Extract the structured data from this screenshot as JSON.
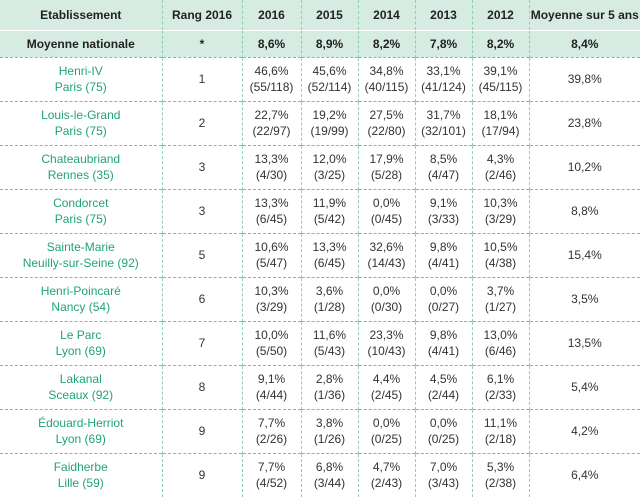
{
  "headers": [
    "Etablissement",
    "Rang 2016",
    "2016",
    "2015",
    "2014",
    "2013",
    "2012",
    "Moyenne sur 5 ans"
  ],
  "national": {
    "label": "Moyenne nationale",
    "rank": "*",
    "values": [
      "8,6%",
      "8,9%",
      "8,2%",
      "7,8%",
      "8,2%"
    ],
    "avg": "8,4%"
  },
  "rows": [
    {
      "name": "Henri-IV",
      "city": "Paris (75)",
      "rank": "1",
      "years": [
        [
          "46,6%",
          "(55/118)"
        ],
        [
          "45,6%",
          "(52/114)"
        ],
        [
          "34,8%",
          "(40/115)"
        ],
        [
          "33,1%",
          "(41/124)"
        ],
        [
          "39,1%",
          "(45/115)"
        ]
      ],
      "avg": "39,8%"
    },
    {
      "name": "Louis-le-Grand",
      "city": "Paris (75)",
      "rank": "2",
      "years": [
        [
          "22,7%",
          "(22/97)"
        ],
        [
          "19,2%",
          "(19/99)"
        ],
        [
          "27,5%",
          "(22/80)"
        ],
        [
          "31,7%",
          "(32/101)"
        ],
        [
          "18,1%",
          "(17/94)"
        ]
      ],
      "avg": "23,8%"
    },
    {
      "name": "Chateaubriand",
      "city": "Rennes (35)",
      "rank": "3",
      "years": [
        [
          "13,3%",
          "(4/30)"
        ],
        [
          "12,0%",
          "(3/25)"
        ],
        [
          "17,9%",
          "(5/28)"
        ],
        [
          "8,5%",
          "(4/47)"
        ],
        [
          "4,3%",
          "(2/46)"
        ]
      ],
      "avg": "10,2%"
    },
    {
      "name": "Condorcet",
      "city": "Paris (75)",
      "rank": "3",
      "years": [
        [
          "13,3%",
          "(6/45)"
        ],
        [
          "11,9%",
          "(5/42)"
        ],
        [
          "0,0%",
          "(0/45)"
        ],
        [
          "9,1%",
          "(3/33)"
        ],
        [
          "10,3%",
          "(3/29)"
        ]
      ],
      "avg": "8,8%"
    },
    {
      "name": "Sainte-Marie",
      "city": "Neuilly-sur-Seine (92)",
      "rank": "5",
      "years": [
        [
          "10,6%",
          "(5/47)"
        ],
        [
          "13,3%",
          "(6/45)"
        ],
        [
          "32,6%",
          "(14/43)"
        ],
        [
          "9,8%",
          "(4/41)"
        ],
        [
          "10,5%",
          "(4/38)"
        ]
      ],
      "avg": "15,4%"
    },
    {
      "name": "Henri-Poincaré",
      "city": "Nancy (54)",
      "rank": "6",
      "years": [
        [
          "10,3%",
          "(3/29)"
        ],
        [
          "3,6%",
          "(1/28)"
        ],
        [
          "0,0%",
          "(0/30)"
        ],
        [
          "0,0%",
          "(0/27)"
        ],
        [
          "3,7%",
          "(1/27)"
        ]
      ],
      "avg": "3,5%"
    },
    {
      "name": "Le Parc",
      "city": "Lyon (69)",
      "rank": "7",
      "years": [
        [
          "10,0%",
          "(5/50)"
        ],
        [
          "11,6%",
          "(5/43)"
        ],
        [
          "23,3%",
          "(10/43)"
        ],
        [
          "9,8%",
          "(4/41)"
        ],
        [
          "13,0%",
          "(6/46)"
        ]
      ],
      "avg": "13,5%"
    },
    {
      "name": "Lakanal",
      "city": "Sceaux (92)",
      "rank": "8",
      "years": [
        [
          "9,1%",
          "(4/44)"
        ],
        [
          "2,8%",
          "(1/36)"
        ],
        [
          "4,4%",
          "(2/45)"
        ],
        [
          "4,5%",
          "(2/44)"
        ],
        [
          "6,1%",
          "(2/33)"
        ]
      ],
      "avg": "5,4%"
    },
    {
      "name": "Édouard-Herriot",
      "city": "Lyon (69)",
      "rank": "9",
      "years": [
        [
          "7,7%",
          "(2/26)"
        ],
        [
          "3,8%",
          "(1/26)"
        ],
        [
          "0,0%",
          "(0/25)"
        ],
        [
          "0,0%",
          "(0/25)"
        ],
        [
          "11,1%",
          "(2/18)"
        ]
      ],
      "avg": "4,2%"
    },
    {
      "name": "Faidherbe",
      "city": "Lille (59)",
      "rank": "9",
      "years": [
        [
          "7,7%",
          "(4/52)"
        ],
        [
          "6,8%",
          "(3/44)"
        ],
        [
          "4,7%",
          "(2/43)"
        ],
        [
          "7,0%",
          "(3/43)"
        ],
        [
          "5,3%",
          "(2/38)"
        ]
      ],
      "avg": "6,4%"
    }
  ]
}
